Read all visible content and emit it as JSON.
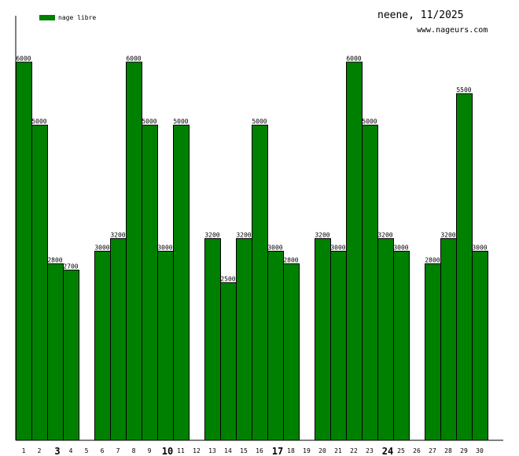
{
  "chart_data": {
    "type": "bar",
    "title": "neene, 11/2025",
    "subtitle": "www.nageurs.com",
    "legend": {
      "label": "nage libre",
      "color": "#008000",
      "position": "top-left"
    },
    "categories": [
      1,
      2,
      3,
      4,
      5,
      6,
      7,
      8,
      9,
      10,
      11,
      12,
      13,
      14,
      15,
      16,
      17,
      18,
      19,
      20,
      21,
      22,
      23,
      24,
      25,
      26,
      27,
      28,
      29,
      30
    ],
    "bold_ticks": [
      3,
      10,
      17,
      24
    ],
    "values": [
      6000,
      5000,
      2800,
      2700,
      null,
      3000,
      3200,
      6000,
      5000,
      3000,
      5000,
      null,
      3200,
      2500,
      3200,
      5000,
      3000,
      2800,
      null,
      3200,
      3000,
      6000,
      5000,
      3200,
      3000,
      null,
      2800,
      3200,
      5500,
      3000
    ],
    "value_labels": [
      "6000",
      "5000",
      "2800",
      "2700",
      "",
      "3000",
      "3200",
      "6000",
      "5000",
      "3000",
      "5000",
      "",
      "3200",
      "2500",
      "3200",
      "5000",
      "3000",
      "2800",
      "",
      "3200",
      "3000",
      "6000",
      "5000",
      "3200",
      "3000",
      "",
      "2800",
      "3200",
      "5500",
      "3000"
    ],
    "ylim": [
      0,
      6000
    ],
    "grid": false
  }
}
